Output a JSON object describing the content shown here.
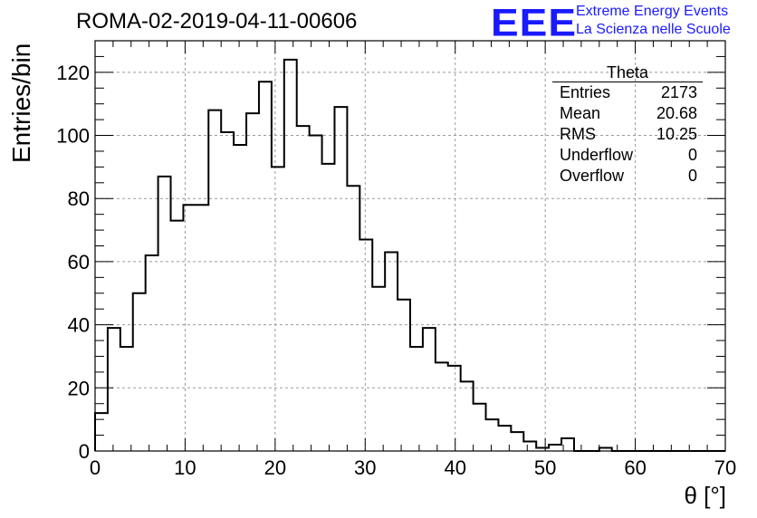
{
  "header": {
    "title": "ROMA-02-2019-04-11-00606"
  },
  "logo": {
    "mark": "EEE",
    "line1": "Extreme Energy Events",
    "line2": "La Scienza nelle Scuole",
    "color": "#1a1aff"
  },
  "stats_box": {
    "title": "Theta",
    "rows": [
      {
        "label": "Entries",
        "value": "2173"
      },
      {
        "label": "Mean",
        "value": "20.68"
      },
      {
        "label": "RMS",
        "value": "10.25"
      },
      {
        "label": "Underflow",
        "value": "0"
      },
      {
        "label": "Overflow",
        "value": "0"
      }
    ]
  },
  "chart_data": {
    "type": "bar",
    "histogram": true,
    "title": "ROMA-02-2019-04-11-00606",
    "xlabel": "θ [°]",
    "ylabel": "Entries/bin",
    "xlim": [
      0,
      70
    ],
    "ylim": [
      0,
      130
    ],
    "grid": true,
    "x_ticks": [
      0,
      10,
      20,
      30,
      40,
      50,
      60,
      70
    ],
    "y_ticks": [
      0,
      20,
      40,
      60,
      80,
      100,
      120
    ],
    "bin_width": 1.4,
    "bin_edges_start": 0,
    "values": [
      12,
      39,
      33,
      50,
      62,
      87,
      73,
      78,
      78,
      108,
      101,
      97,
      107,
      117,
      90,
      124,
      103,
      100,
      91,
      109,
      84,
      67,
      52,
      63,
      48,
      33,
      39,
      28,
      27,
      22,
      15,
      10,
      8,
      6,
      3,
      1,
      2,
      4,
      0,
      0,
      1,
      0,
      0,
      0,
      0,
      0,
      0,
      0,
      0,
      0
    ],
    "line_color": "#000000"
  }
}
